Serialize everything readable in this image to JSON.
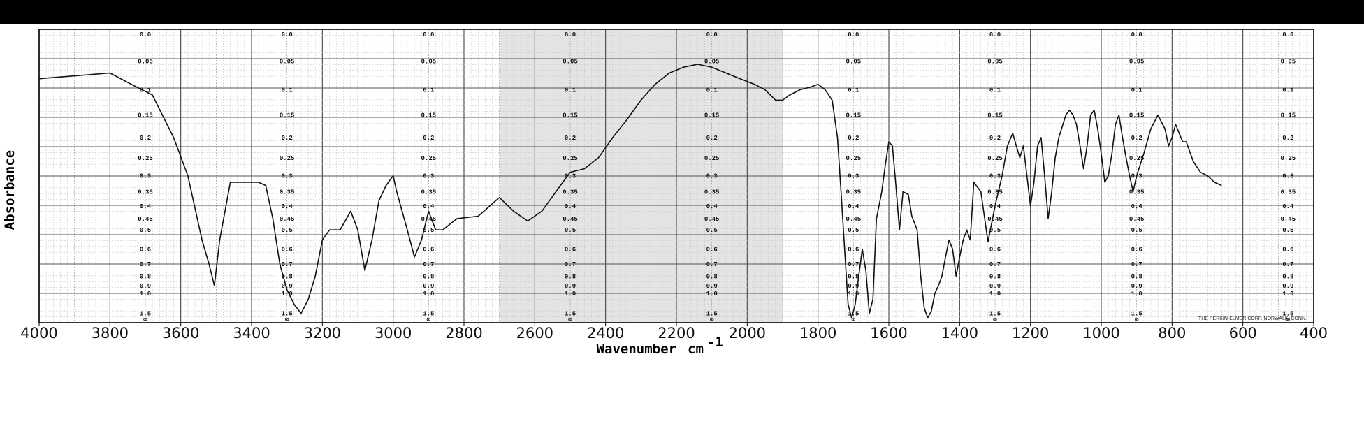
{
  "chart_data": {
    "type": "line",
    "xlabel": "Wavenumber",
    "xunit_base": "cm",
    "xunit_exp": "-1",
    "ylabel": "Absorbance",
    "credit": "THE PERKIN-ELMER CORP. NORWALK, CONN.",
    "xlim": [
      4000,
      400
    ],
    "x_ticks": [
      4000,
      3800,
      3600,
      3400,
      3200,
      3000,
      2800,
      2600,
      2400,
      2200,
      2000,
      1800,
      1600,
      1400,
      1200,
      1000,
      800,
      600,
      400
    ],
    "x_tick_labels": [
      "4000",
      "3800",
      "3600",
      "3400",
      "3200",
      "3000",
      "2800",
      "2600",
      "2400",
      "2200",
      "2000",
      "1800",
      "1600",
      "1400",
      "1200",
      "1000",
      "800",
      "600",
      "400"
    ],
    "absorbance_scale": [
      "0.0",
      "0.05",
      "0.1",
      "0.15",
      "0.2",
      "0.25",
      "0.3",
      "0.35",
      "0.4",
      "0.45",
      "0.5",
      "0.6",
      "0.7",
      "0.8",
      "0.9",
      "1.0",
      "1.5",
      "∞"
    ],
    "grid": true,
    "series": [
      {
        "values": [
          [
            4000,
            0.08
          ],
          [
            3900,
            0.075
          ],
          [
            3800,
            0.07
          ],
          [
            3740,
            0.09
          ],
          [
            3680,
            0.11
          ],
          [
            3620,
            0.2
          ],
          [
            3580,
            0.3
          ],
          [
            3540,
            0.55
          ],
          [
            3520,
            0.7
          ],
          [
            3505,
            0.9
          ],
          [
            3490,
            0.55
          ],
          [
            3460,
            0.32
          ],
          [
            3420,
            0.32
          ],
          [
            3380,
            0.32
          ],
          [
            3360,
            0.33
          ],
          [
            3340,
            0.45
          ],
          [
            3320,
            0.7
          ],
          [
            3300,
            0.95
          ],
          [
            3280,
            1.2
          ],
          [
            3260,
            1.5
          ],
          [
            3240,
            1.1
          ],
          [
            3220,
            0.8
          ],
          [
            3200,
            0.55
          ],
          [
            3180,
            0.5
          ],
          [
            3150,
            0.5
          ],
          [
            3120,
            0.42
          ],
          [
            3100,
            0.5
          ],
          [
            3080,
            0.75
          ],
          [
            3060,
            0.55
          ],
          [
            3040,
            0.38
          ],
          [
            3020,
            0.33
          ],
          [
            3000,
            0.3
          ],
          [
            2990,
            0.35
          ],
          [
            2960,
            0.5
          ],
          [
            2940,
            0.65
          ],
          [
            2920,
            0.55
          ],
          [
            2900,
            0.42
          ],
          [
            2880,
            0.5
          ],
          [
            2860,
            0.5
          ],
          [
            2820,
            0.45
          ],
          [
            2760,
            0.44
          ],
          [
            2700,
            0.37
          ],
          [
            2660,
            0.42
          ],
          [
            2620,
            0.46
          ],
          [
            2580,
            0.42
          ],
          [
            2540,
            0.35
          ],
          [
            2500,
            0.29
          ],
          [
            2460,
            0.28
          ],
          [
            2420,
            0.25
          ],
          [
            2380,
            0.2
          ],
          [
            2340,
            0.16
          ],
          [
            2300,
            0.12
          ],
          [
            2260,
            0.09
          ],
          [
            2220,
            0.07
          ],
          [
            2180,
            0.06
          ],
          [
            2140,
            0.055
          ],
          [
            2100,
            0.06
          ],
          [
            2060,
            0.07
          ],
          [
            2020,
            0.08
          ],
          [
            1980,
            0.09
          ],
          [
            1950,
            0.1
          ],
          [
            1920,
            0.12
          ],
          [
            1900,
            0.12
          ],
          [
            1880,
            0.11
          ],
          [
            1850,
            0.1
          ],
          [
            1820,
            0.095
          ],
          [
            1800,
            0.09
          ],
          [
            1780,
            0.1
          ],
          [
            1760,
            0.12
          ],
          [
            1745,
            0.2
          ],
          [
            1735,
            0.35
          ],
          [
            1725,
            0.6
          ],
          [
            1715,
            1.2
          ],
          [
            1705,
            1.8
          ],
          [
            1695,
            1.2
          ],
          [
            1685,
            0.8
          ],
          [
            1675,
            0.6
          ],
          [
            1665,
            0.75
          ],
          [
            1655,
            1.5
          ],
          [
            1645,
            1.1
          ],
          [
            1635,
            0.45
          ],
          [
            1620,
            0.35
          ],
          [
            1610,
            0.27
          ],
          [
            1600,
            0.21
          ],
          [
            1590,
            0.22
          ],
          [
            1580,
            0.33
          ],
          [
            1570,
            0.5
          ],
          [
            1560,
            0.35
          ],
          [
            1545,
            0.36
          ],
          [
            1535,
            0.44
          ],
          [
            1520,
            0.5
          ],
          [
            1510,
            0.8
          ],
          [
            1500,
            1.3
          ],
          [
            1490,
            1.8
          ],
          [
            1480,
            1.4
          ],
          [
            1470,
            1.0
          ],
          [
            1460,
            0.9
          ],
          [
            1450,
            0.8
          ],
          [
            1440,
            0.65
          ],
          [
            1430,
            0.55
          ],
          [
            1420,
            0.6
          ],
          [
            1410,
            0.8
          ],
          [
            1400,
            0.65
          ],
          [
            1390,
            0.55
          ],
          [
            1380,
            0.5
          ],
          [
            1370,
            0.55
          ],
          [
            1360,
            0.32
          ],
          [
            1340,
            0.35
          ],
          [
            1320,
            0.56
          ],
          [
            1300,
            0.4
          ],
          [
            1280,
            0.3
          ],
          [
            1265,
            0.22
          ],
          [
            1250,
            0.19
          ],
          [
            1240,
            0.22
          ],
          [
            1230,
            0.25
          ],
          [
            1220,
            0.22
          ],
          [
            1210,
            0.3
          ],
          [
            1200,
            0.4
          ],
          [
            1190,
            0.32
          ],
          [
            1180,
            0.22
          ],
          [
            1170,
            0.2
          ],
          [
            1160,
            0.3
          ],
          [
            1150,
            0.45
          ],
          [
            1140,
            0.35
          ],
          [
            1130,
            0.25
          ],
          [
            1120,
            0.2
          ],
          [
            1100,
            0.15
          ],
          [
            1090,
            0.14
          ],
          [
            1080,
            0.15
          ],
          [
            1070,
            0.17
          ],
          [
            1060,
            0.22
          ],
          [
            1050,
            0.28
          ],
          [
            1040,
            0.22
          ],
          [
            1030,
            0.15
          ],
          [
            1020,
            0.14
          ],
          [
            1010,
            0.18
          ],
          [
            1000,
            0.24
          ],
          [
            990,
            0.32
          ],
          [
            980,
            0.3
          ],
          [
            970,
            0.24
          ],
          [
            960,
            0.17
          ],
          [
            950,
            0.15
          ],
          [
            940,
            0.2
          ],
          [
            930,
            0.25
          ],
          [
            920,
            0.3
          ],
          [
            910,
            0.35
          ],
          [
            900,
            0.3
          ],
          [
            880,
            0.24
          ],
          [
            860,
            0.18
          ],
          [
            840,
            0.15
          ],
          [
            820,
            0.18
          ],
          [
            810,
            0.22
          ],
          [
            800,
            0.2
          ],
          [
            790,
            0.17
          ],
          [
            780,
            0.19
          ],
          [
            770,
            0.21
          ],
          [
            760,
            0.21
          ],
          [
            740,
            0.26
          ],
          [
            720,
            0.29
          ],
          [
            700,
            0.3
          ],
          [
            680,
            0.32
          ],
          [
            660,
            0.33
          ]
        ]
      }
    ]
  }
}
